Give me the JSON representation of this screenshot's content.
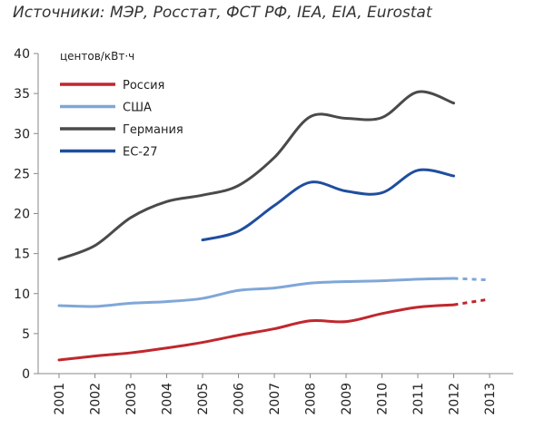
{
  "source": "Источники: МЭР, Росстат, ФСТ РФ, IEA, EIA, Eurostat",
  "chart_data": {
    "type": "line",
    "title": "",
    "ylabel": "центов/кВт·ч",
    "xlabel": "",
    "ylim": [
      0,
      40
    ],
    "yticks": [
      0,
      5,
      10,
      15,
      20,
      25,
      30,
      35,
      40
    ],
    "categories": [
      "2001",
      "2002",
      "2003",
      "2004",
      "2005",
      "2006",
      "2007",
      "2008",
      "2009",
      "2010",
      "2011",
      "2012",
      "2013"
    ],
    "legend_position": "top-left",
    "series": [
      {
        "name": "Россия",
        "color": "#c0272d",
        "values": [
          1.7,
          2.2,
          2.6,
          3.2,
          3.9,
          4.8,
          5.6,
          6.6,
          6.5,
          7.5,
          8.3,
          8.6,
          null
        ],
        "projection": [
          [
            2012,
            8.6
          ],
          [
            2013,
            9.3
          ]
        ]
      },
      {
        "name": "США",
        "color": "#7fa7d8",
        "values": [
          8.5,
          8.4,
          8.8,
          9.0,
          9.4,
          10.4,
          10.7,
          11.3,
          11.5,
          11.6,
          11.8,
          11.9,
          null
        ],
        "projection": [
          [
            2012,
            11.9
          ],
          [
            2013,
            11.7
          ]
        ]
      },
      {
        "name": "Германия",
        "color": "#4a4a4a",
        "values": [
          14.3,
          16.0,
          19.5,
          21.5,
          22.3,
          23.5,
          27.0,
          32.1,
          31.9,
          32.0,
          35.2,
          33.8,
          null
        ]
      },
      {
        "name": "ЕС-27",
        "color": "#1f4e9e",
        "values": [
          null,
          null,
          null,
          null,
          16.7,
          17.8,
          21.0,
          23.9,
          22.8,
          22.6,
          25.4,
          24.7,
          null
        ]
      }
    ]
  }
}
